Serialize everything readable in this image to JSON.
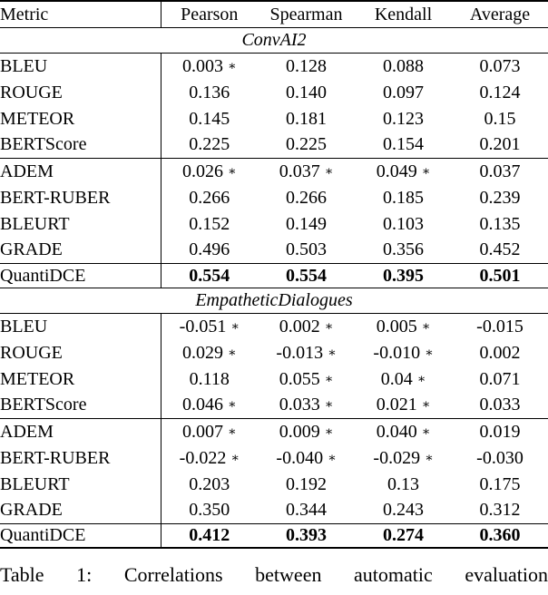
{
  "colors": {
    "text": "#000000",
    "background": "#ffffff",
    "rule": "#000000"
  },
  "table": {
    "star_symbol": "∗",
    "columns": [
      "Metric",
      "Pearson",
      "Spearman",
      "Kendall",
      "Average"
    ],
    "sections": [
      {
        "title": "ConvAI2",
        "blocks": [
          {
            "bold": false,
            "rows": [
              {
                "metric": "BLEU",
                "cells": [
                  {
                    "value": "0.003",
                    "star": true
                  },
                  {
                    "value": "0.128",
                    "star": false
                  },
                  {
                    "value": "0.088",
                    "star": false
                  },
                  {
                    "value": "0.073",
                    "star": false
                  }
                ]
              },
              {
                "metric": "ROUGE",
                "cells": [
                  {
                    "value": "0.136",
                    "star": false
                  },
                  {
                    "value": "0.140",
                    "star": false
                  },
                  {
                    "value": "0.097",
                    "star": false
                  },
                  {
                    "value": "0.124",
                    "star": false
                  }
                ]
              },
              {
                "metric": "METEOR",
                "cells": [
                  {
                    "value": "0.145",
                    "star": false
                  },
                  {
                    "value": "0.181",
                    "star": false
                  },
                  {
                    "value": "0.123",
                    "star": false
                  },
                  {
                    "value": "0.15",
                    "star": false
                  }
                ]
              },
              {
                "metric": "BERTScore",
                "cells": [
                  {
                    "value": "0.225",
                    "star": false
                  },
                  {
                    "value": "0.225",
                    "star": false
                  },
                  {
                    "value": "0.154",
                    "star": false
                  },
                  {
                    "value": "0.201",
                    "star": false
                  }
                ]
              }
            ]
          },
          {
            "bold": false,
            "rows": [
              {
                "metric": "ADEM",
                "cells": [
                  {
                    "value": "0.026",
                    "star": true
                  },
                  {
                    "value": "0.037",
                    "star": true
                  },
                  {
                    "value": "0.049",
                    "star": true
                  },
                  {
                    "value": "0.037",
                    "star": false
                  }
                ]
              },
              {
                "metric": "BERT-RUBER",
                "cells": [
                  {
                    "value": "0.266",
                    "star": false
                  },
                  {
                    "value": "0.266",
                    "star": false
                  },
                  {
                    "value": "0.185",
                    "star": false
                  },
                  {
                    "value": "0.239",
                    "star": false
                  }
                ]
              },
              {
                "metric": "BLEURT",
                "cells": [
                  {
                    "value": "0.152",
                    "star": false
                  },
                  {
                    "value": "0.149",
                    "star": false
                  },
                  {
                    "value": "0.103",
                    "star": false
                  },
                  {
                    "value": "0.135",
                    "star": false
                  }
                ]
              },
              {
                "metric": "GRADE",
                "cells": [
                  {
                    "value": "0.496",
                    "star": false
                  },
                  {
                    "value": "0.503",
                    "star": false
                  },
                  {
                    "value": "0.356",
                    "star": false
                  },
                  {
                    "value": "0.452",
                    "star": false
                  }
                ]
              }
            ]
          },
          {
            "bold": true,
            "rows": [
              {
                "metric": "QuantiDCE",
                "cells": [
                  {
                    "value": "0.554",
                    "star": false
                  },
                  {
                    "value": "0.554",
                    "star": false
                  },
                  {
                    "value": "0.395",
                    "star": false
                  },
                  {
                    "value": "0.501",
                    "star": false
                  }
                ]
              }
            ]
          }
        ]
      },
      {
        "title": "EmpatheticDialogues",
        "blocks": [
          {
            "bold": false,
            "rows": [
              {
                "metric": "BLEU",
                "cells": [
                  {
                    "value": "-0.051",
                    "star": true
                  },
                  {
                    "value": "0.002",
                    "star": true
                  },
                  {
                    "value": "0.005",
                    "star": true
                  },
                  {
                    "value": "-0.015",
                    "star": false
                  }
                ]
              },
              {
                "metric": "ROUGE",
                "cells": [
                  {
                    "value": "0.029",
                    "star": true
                  },
                  {
                    "value": "-0.013",
                    "star": true
                  },
                  {
                    "value": "-0.010",
                    "star": true
                  },
                  {
                    "value": "0.002",
                    "star": false
                  }
                ]
              },
              {
                "metric": "METEOR",
                "cells": [
                  {
                    "value": "0.118",
                    "star": false
                  },
                  {
                    "value": "0.055",
                    "star": true
                  },
                  {
                    "value": "0.04",
                    "star": true
                  },
                  {
                    "value": "0.071",
                    "star": false
                  }
                ]
              },
              {
                "metric": "BERTScore",
                "cells": [
                  {
                    "value": "0.046",
                    "star": true
                  },
                  {
                    "value": "0.033",
                    "star": true
                  },
                  {
                    "value": "0.021",
                    "star": true
                  },
                  {
                    "value": "0.033",
                    "star": false
                  }
                ]
              }
            ]
          },
          {
            "bold": false,
            "rows": [
              {
                "metric": "ADEM",
                "cells": [
                  {
                    "value": "0.007",
                    "star": true
                  },
                  {
                    "value": "0.009",
                    "star": true
                  },
                  {
                    "value": "0.040",
                    "star": true
                  },
                  {
                    "value": "0.019",
                    "star": false
                  }
                ]
              },
              {
                "metric": "BERT-RUBER",
                "cells": [
                  {
                    "value": "-0.022",
                    "star": true
                  },
                  {
                    "value": "-0.040",
                    "star": true
                  },
                  {
                    "value": "-0.029",
                    "star": true
                  },
                  {
                    "value": "-0.030",
                    "star": false
                  }
                ]
              },
              {
                "metric": "BLEURT",
                "cells": [
                  {
                    "value": "0.203",
                    "star": false
                  },
                  {
                    "value": "0.192",
                    "star": false
                  },
                  {
                    "value": "0.13",
                    "star": false
                  },
                  {
                    "value": "0.175",
                    "star": false
                  }
                ]
              },
              {
                "metric": "GRADE",
                "cells": [
                  {
                    "value": "0.350",
                    "star": false
                  },
                  {
                    "value": "0.344",
                    "star": false
                  },
                  {
                    "value": "0.243",
                    "star": false
                  },
                  {
                    "value": "0.312",
                    "star": false
                  }
                ]
              }
            ]
          },
          {
            "bold": true,
            "rows": [
              {
                "metric": "QuantiDCE",
                "cells": [
                  {
                    "value": "0.412",
                    "star": false
                  },
                  {
                    "value": "0.393",
                    "star": false
                  },
                  {
                    "value": "0.274",
                    "star": false
                  },
                  {
                    "value": "0.360",
                    "star": false
                  }
                ]
              }
            ]
          }
        ]
      }
    ]
  },
  "caption": "Table 1: Correlations between automatic evaluation"
}
